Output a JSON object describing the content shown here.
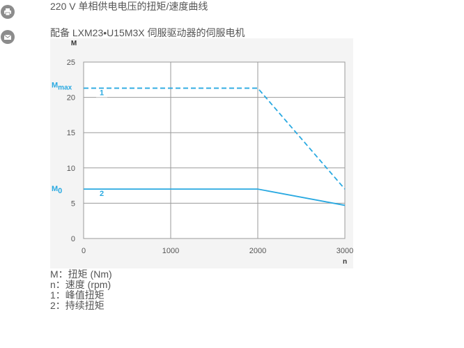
{
  "sidebar": {
    "print_icon": "printer-icon",
    "mail_icon": "envelope-icon"
  },
  "header": {
    "title": "220 V 单相供电电压的扭矩/速度曲线",
    "subtitle": "配备 LXM23•U15M3X 伺服驱动器的伺服电机"
  },
  "legend": {
    "items": [
      "M：扭矩 (Nm)",
      "n：速度 (rpm)",
      "1：峰值扭矩",
      "2：持续扭矩"
    ]
  },
  "colors": {
    "curve": "#29a9e1",
    "grid": "#9a9a9a",
    "text": "#555555",
    "plot_bg": "#f4f4f4"
  },
  "chart_data": {
    "type": "line",
    "xlabel": "n",
    "ylabel": "M",
    "xlim": [
      0,
      3000
    ],
    "ylim": [
      0,
      25
    ],
    "xticks": [
      0,
      1000,
      2000,
      3000
    ],
    "yticks": [
      0,
      5,
      10,
      15,
      20,
      25
    ],
    "grid": true,
    "annotations": [
      {
        "label": "M",
        "subscript": "max",
        "y": 21.3
      },
      {
        "label": "M",
        "subscript": "0",
        "y": 7
      }
    ],
    "series": [
      {
        "name": "1",
        "style": "dashed",
        "x": [
          0,
          2000,
          3000
        ],
        "y": [
          21.3,
          21.3,
          7
        ]
      },
      {
        "name": "2",
        "style": "solid",
        "x": [
          0,
          2000,
          3000
        ],
        "y": [
          7,
          7,
          4.7
        ]
      }
    ]
  }
}
